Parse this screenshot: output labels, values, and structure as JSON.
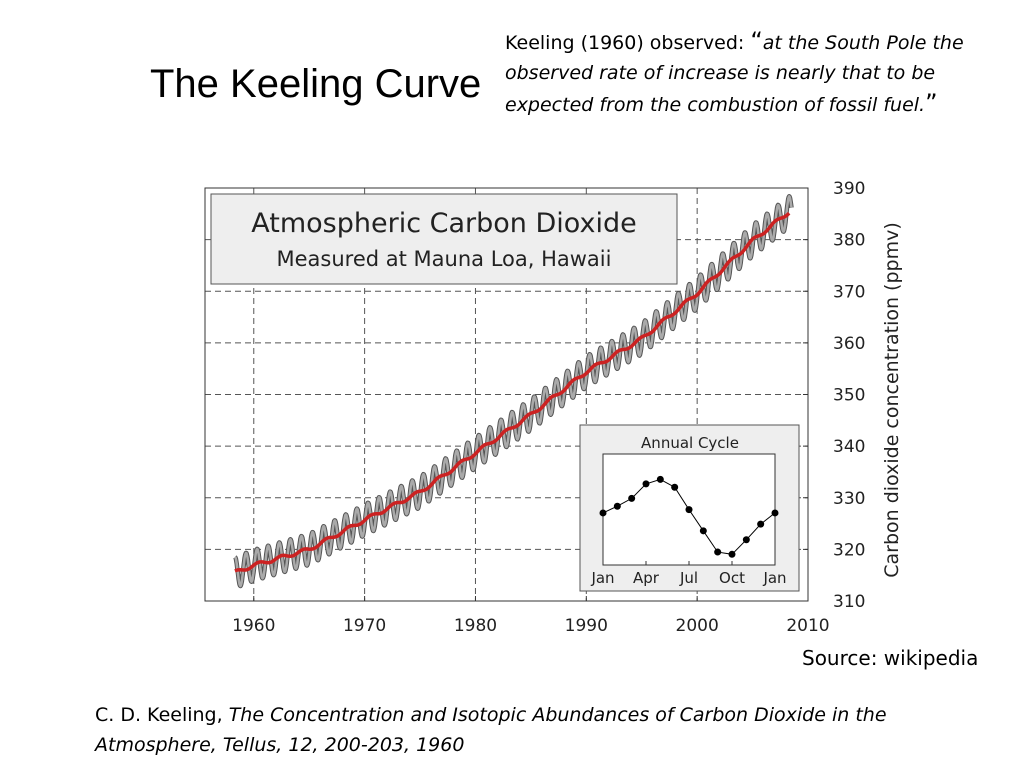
{
  "slide": {
    "title": "The Keeling Curve",
    "quote_prefix": "Keeling (1960)  observed: ",
    "quote_open": "“",
    "quote_text": "at the South Pole the observed rate of increase is nearly that to be expected from the combustion of fossil fuel.",
    "quote_close": "”",
    "source": "Source: wikipedia",
    "citation_author": "C. D. Keeling, ",
    "citation_title": "The Concentration and Isotopic Abundances of Carbon Dioxide in the Atmosphere, Tellus, 12, 200-203, 1960"
  },
  "chart_data": [
    {
      "type": "line",
      "title": "Atmospheric Carbon Dioxide",
      "subtitle": "Measured at Mauna Loa, Hawaii",
      "xlabel": "",
      "ylabel": "Carbon dioxide concentration (ppmv)",
      "xlim": [
        1955.6,
        2010
      ],
      "ylim": [
        310,
        390
      ],
      "x_ticks": [
        "1960",
        "1970",
        "1980",
        "1990",
        "2000",
        "2010"
      ],
      "y_ticks": [
        "310",
        "320",
        "330",
        "340",
        "350",
        "360",
        "370",
        "380",
        "390"
      ],
      "grid": true,
      "series": [
        {
          "role": "monthly",
          "color": "#aaaaaa",
          "seasonal_amplitude_ppmv": 3
        },
        {
          "role": "annual-mean",
          "color": "#cc2222",
          "x": [
            1958.3,
            1960,
            1965,
            1970,
            1975,
            1980,
            1985,
            1990,
            1995,
            2000,
            2005,
            2008.3
          ],
          "y": [
            315.5,
            316.9,
            320.0,
            325.7,
            331.1,
            338.7,
            346.1,
            354.4,
            360.8,
            369.6,
            379.8,
            385.4
          ]
        }
      ],
      "inset": {
        "type": "line",
        "title": "Annual Cycle",
        "categories": [
          "Jan",
          "Feb",
          "Mar",
          "Apr",
          "May",
          "Jun",
          "Jul",
          "Aug",
          "Sep",
          "Oct",
          "Nov",
          "Dec",
          "Jan"
        ],
        "tick_labels": [
          "Jan",
          "Apr",
          "Jul",
          "Oct",
          "Jan"
        ],
        "values": [
          0.0,
          0.6,
          1.3,
          2.6,
          3.0,
          2.3,
          0.3,
          -1.6,
          -3.5,
          -3.7,
          -2.4,
          -1.0,
          0.0
        ],
        "color": "#000000"
      }
    }
  ]
}
